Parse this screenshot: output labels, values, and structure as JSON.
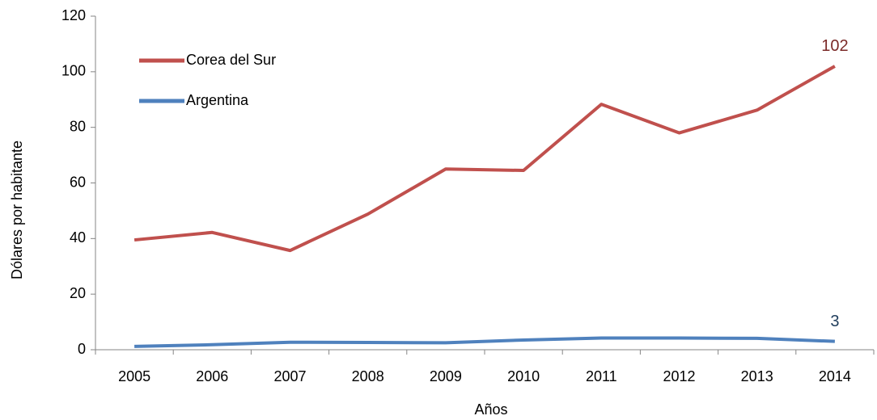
{
  "chart_data": {
    "type": "line",
    "xlabel": "Años",
    "ylabel": "Dólares por habitante",
    "categories": [
      "2005",
      "2006",
      "2007",
      "2008",
      "2009",
      "2010",
      "2011",
      "2012",
      "2013",
      "2014"
    ],
    "series": [
      {
        "name": "Corea del Sur",
        "color": "#c0504d",
        "values": [
          39.5,
          42.2,
          35.7,
          48.8,
          65,
          64.5,
          88.3,
          78,
          86.2,
          102
        ],
        "value_labels": [
          null,
          null,
          null,
          null,
          null,
          null,
          null,
          null,
          null,
          "102"
        ]
      },
      {
        "name": "Argentina",
        "color": "#4f81bd",
        "values": [
          1.2,
          1.8,
          2.7,
          2.6,
          2.5,
          3.5,
          4.2,
          4.2,
          4.1,
          3
        ],
        "value_labels": [
          null,
          null,
          null,
          null,
          null,
          null,
          null,
          null,
          null,
          "3"
        ]
      }
    ],
    "ylim": [
      0,
      120
    ],
    "yticks": [
      0,
      20,
      40,
      60,
      80,
      100,
      120
    ],
    "grid": false,
    "legend": "upper left"
  }
}
